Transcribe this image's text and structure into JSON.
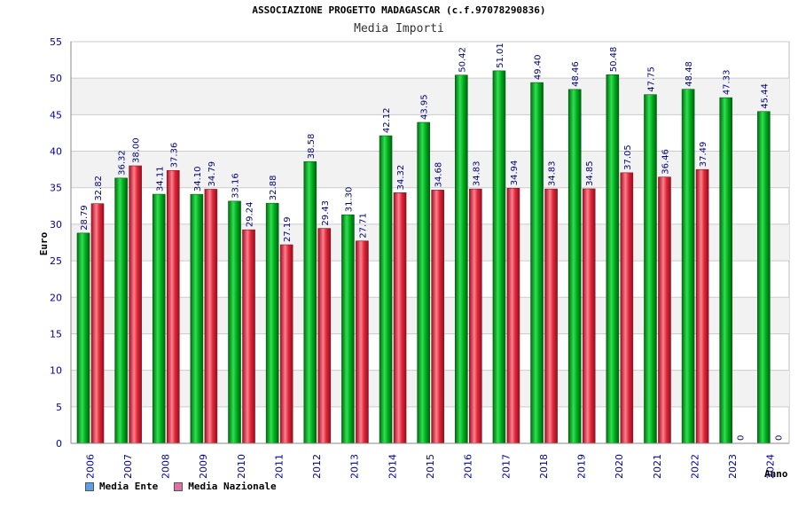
{
  "colors": {
    "ente": "#00b020",
    "nazionale": "#e02838",
    "legend_ente": "#5aa0e8",
    "legend_nazionale": "#e070a0",
    "band": "#f2f2f2",
    "grid": "#cccccc"
  },
  "chart_data": {
    "type": "bar",
    "title": "ASSOCIAZIONE PROGETTO MADAGASCAR (c.f.97078290836)",
    "subtitle": "Media Importi",
    "xlabel": "Anno",
    "ylabel": "Euro",
    "ylim": [
      0,
      55
    ],
    "yticks": [
      "0",
      "5",
      "10",
      "15",
      "20",
      "25",
      "30",
      "35",
      "40",
      "45",
      "50",
      "55"
    ],
    "categories": [
      "2006",
      "2007",
      "2008",
      "2009",
      "2010",
      "2011",
      "2012",
      "2013",
      "2014",
      "2015",
      "2016",
      "2017",
      "2018",
      "2019",
      "2020",
      "2021",
      "2022",
      "2023",
      "2024"
    ],
    "series": [
      {
        "name": "Media Ente",
        "values": [
          28.79,
          36.32,
          34.11,
          34.1,
          33.16,
          32.88,
          38.58,
          31.3,
          42.12,
          43.95,
          50.42,
          51.01,
          49.4,
          48.46,
          50.48,
          47.75,
          48.48,
          47.33,
          45.44
        ],
        "labels": [
          "28.79",
          "36.32",
          "34.11",
          "34.10",
          "33.16",
          "32.88",
          "38.58",
          "31.30",
          "42.12",
          "43.95",
          "50.42",
          "51.01",
          "49.40",
          "48.46",
          "50.48",
          "47.75",
          "48.48",
          "47.33",
          "45.44"
        ]
      },
      {
        "name": "Media Nazionale",
        "values": [
          32.82,
          38.0,
          37.36,
          34.79,
          29.24,
          27.19,
          29.43,
          27.71,
          34.32,
          34.68,
          34.83,
          34.94,
          34.83,
          34.85,
          37.05,
          36.46,
          37.49,
          0,
          0
        ],
        "labels": [
          "32.82",
          "38.00",
          "37.36",
          "34.79",
          "29.24",
          "27.19",
          "29.43",
          "27.71",
          "34.32",
          "34.68",
          "34.83",
          "34.94",
          "34.83",
          "34.85",
          "37.05",
          "36.46",
          "37.49",
          "0",
          "0"
        ]
      }
    ],
    "legend": [
      "Media Ente",
      "Media Nazionale"
    ]
  }
}
